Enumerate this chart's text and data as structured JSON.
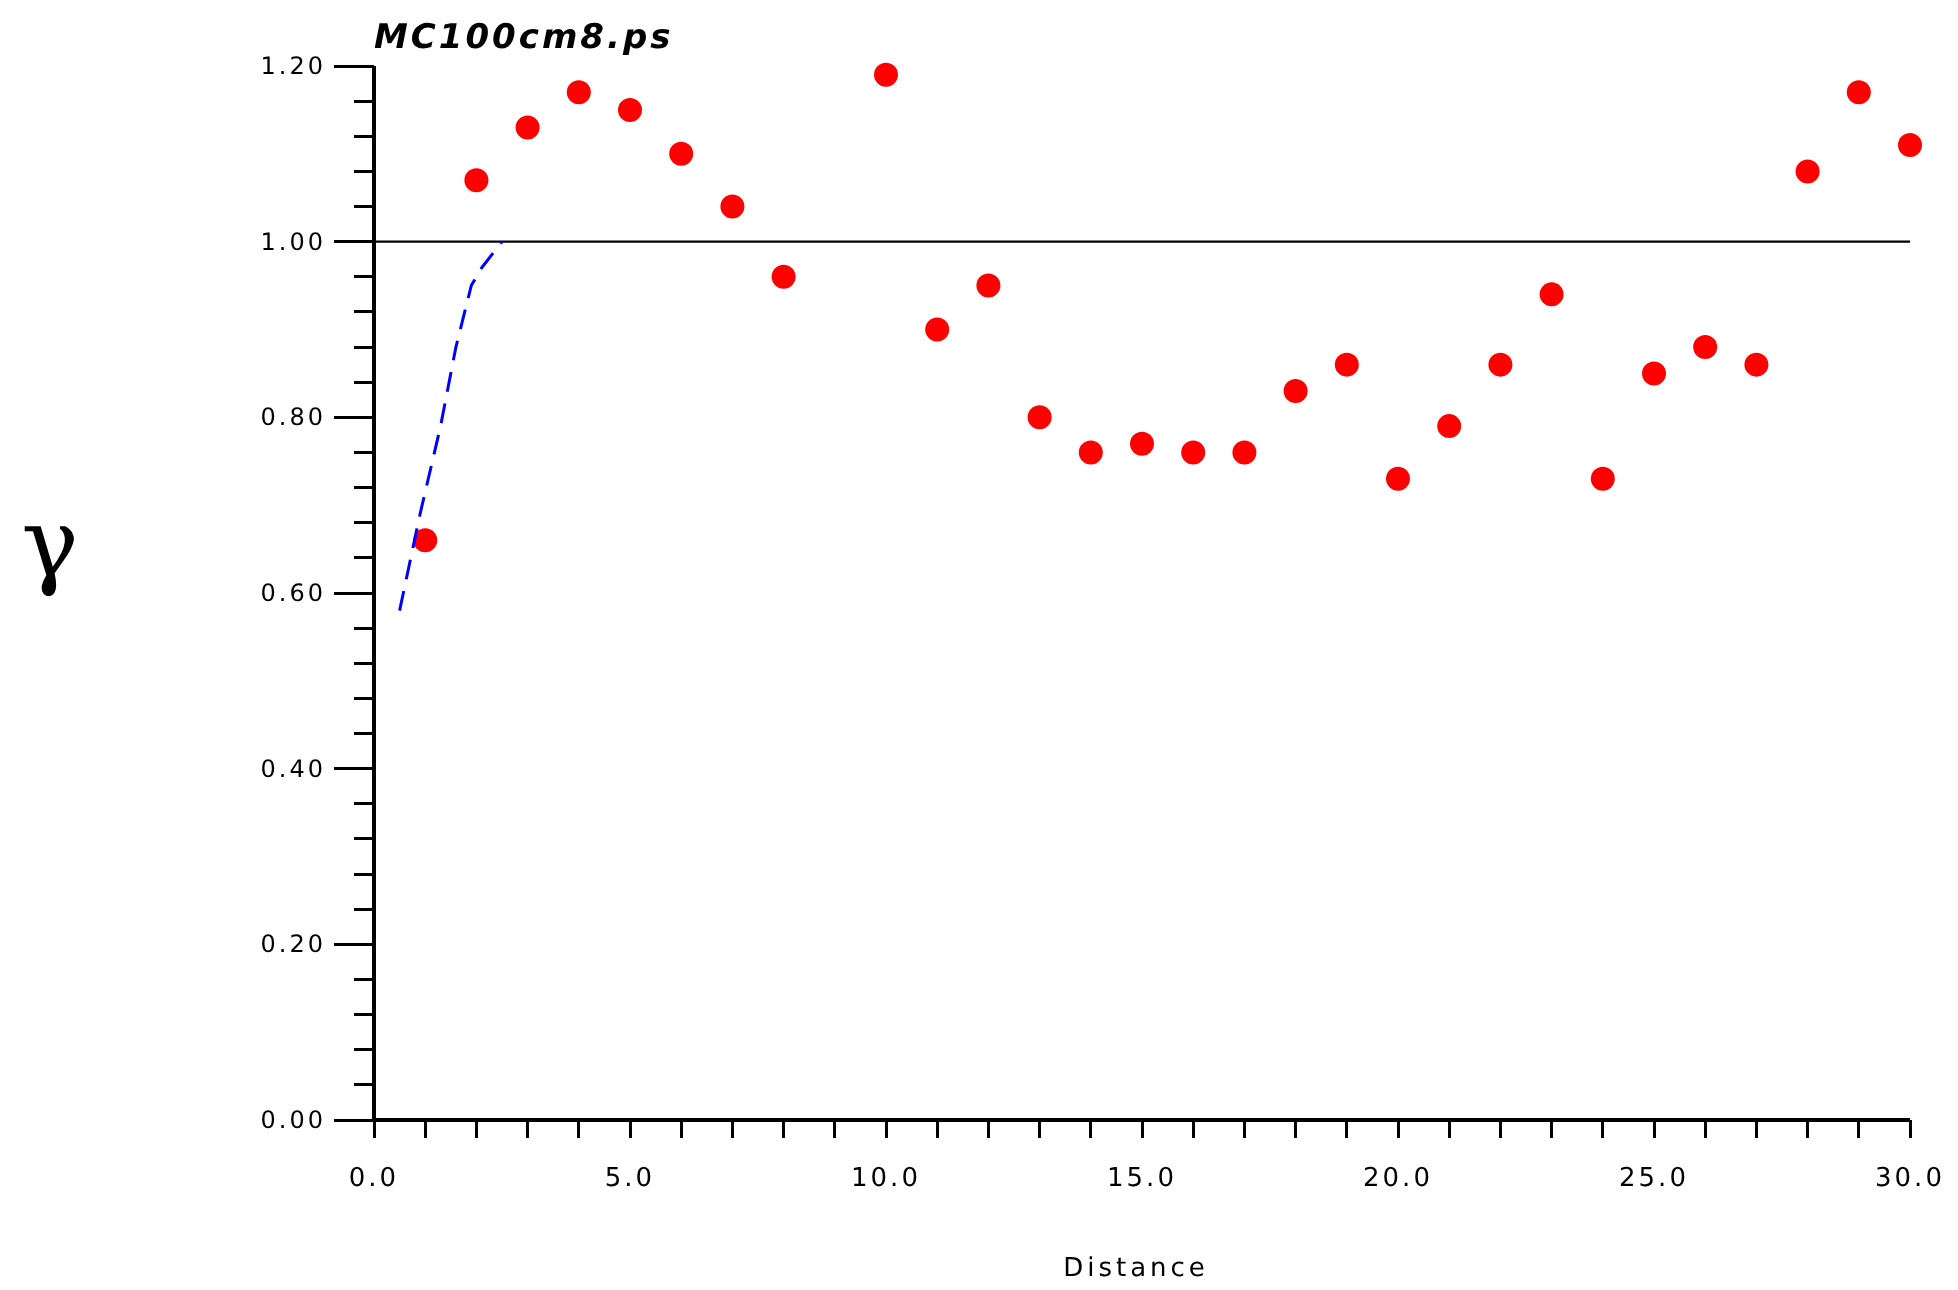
{
  "chart_data": {
    "type": "scatter",
    "title": "MC100cm8.ps",
    "xlabel": "Distance",
    "ylabel": "γ",
    "xlim": [
      0,
      30
    ],
    "ylim": [
      0,
      1.2
    ],
    "xticks": [
      {
        "value": 0,
        "label": "0.0"
      },
      {
        "value": 1,
        "label": null
      },
      {
        "value": 2,
        "label": null
      },
      {
        "value": 3,
        "label": null
      },
      {
        "value": 4,
        "label": null
      },
      {
        "value": 5,
        "label": "5.0"
      },
      {
        "value": 6,
        "label": null
      },
      {
        "value": 7,
        "label": null
      },
      {
        "value": 8,
        "label": null
      },
      {
        "value": 9,
        "label": null
      },
      {
        "value": 10,
        "label": "10.0"
      },
      {
        "value": 11,
        "label": null
      },
      {
        "value": 12,
        "label": null
      },
      {
        "value": 13,
        "label": null
      },
      {
        "value": 14,
        "label": null
      },
      {
        "value": 15,
        "label": "15.0"
      },
      {
        "value": 16,
        "label": null
      },
      {
        "value": 17,
        "label": null
      },
      {
        "value": 18,
        "label": null
      },
      {
        "value": 19,
        "label": null
      },
      {
        "value": 20,
        "label": "20.0"
      },
      {
        "value": 21,
        "label": null
      },
      {
        "value": 22,
        "label": null
      },
      {
        "value": 23,
        "label": null
      },
      {
        "value": 24,
        "label": null
      },
      {
        "value": 25,
        "label": "25.0"
      },
      {
        "value": 26,
        "label": null
      },
      {
        "value": 27,
        "label": null
      },
      {
        "value": 28,
        "label": null
      },
      {
        "value": 29,
        "label": null
      },
      {
        "value": 30,
        "label": "30.0"
      }
    ],
    "yticks": [
      {
        "value": 0,
        "label": "0.00"
      },
      {
        "value": 0.04,
        "label": null
      },
      {
        "value": 0.08,
        "label": null
      },
      {
        "value": 0.12,
        "label": null
      },
      {
        "value": 0.16,
        "label": null
      },
      {
        "value": 0.2,
        "label": "0.20"
      },
      {
        "value": 0.24,
        "label": null
      },
      {
        "value": 0.28,
        "label": null
      },
      {
        "value": 0.32,
        "label": null
      },
      {
        "value": 0.36,
        "label": null
      },
      {
        "value": 0.4,
        "label": "0.40"
      },
      {
        "value": 0.44,
        "label": null
      },
      {
        "value": 0.48,
        "label": null
      },
      {
        "value": 0.52,
        "label": null
      },
      {
        "value": 0.56,
        "label": null
      },
      {
        "value": 0.6,
        "label": "0.60"
      },
      {
        "value": 0.64,
        "label": null
      },
      {
        "value": 0.68,
        "label": null
      },
      {
        "value": 0.72,
        "label": null
      },
      {
        "value": 0.76,
        "label": null
      },
      {
        "value": 0.8,
        "label": "0.80"
      },
      {
        "value": 0.84,
        "label": null
      },
      {
        "value": 0.88,
        "label": null
      },
      {
        "value": 0.92,
        "label": null
      },
      {
        "value": 0.96,
        "label": null
      },
      {
        "value": 1,
        "label": "1.00"
      },
      {
        "value": 1.04,
        "label": null
      },
      {
        "value": 1.08,
        "label": null
      },
      {
        "value": 1.12,
        "label": null
      },
      {
        "value": 1.16,
        "label": null
      },
      {
        "value": 1.2,
        "label": "1.20"
      }
    ],
    "grid": false,
    "ref_lines": [
      {
        "axis": "y",
        "value": 1,
        "color": "#000000",
        "line_style": "solid"
      }
    ],
    "series": [
      {
        "color": "#ff0000",
        "marker": "circle",
        "x": [
          1,
          2,
          3,
          4,
          5,
          6,
          7,
          8,
          10,
          11,
          12,
          13,
          14,
          15,
          16,
          17,
          18,
          19,
          20,
          21,
          22,
          23,
          24,
          25,
          26,
          27,
          28,
          29,
          30
        ],
        "values": [
          0.66,
          1.07,
          1.13,
          1.17,
          1.15,
          1.1,
          1.04,
          0.96,
          1.19,
          0.9,
          0.95,
          0.8,
          0.76,
          0.77,
          0.76,
          0.76,
          0.83,
          0.86,
          0.73,
          0.79,
          0.86,
          0.94,
          0.73,
          0.85,
          0.88,
          0.86,
          1.08,
          1.17,
          1.11
        ]
      },
      {
        "type": "line",
        "color": "#0000ff",
        "line_style": "dashed",
        "marker": "none",
        "x": [
          0.5,
          0.9,
          1.3,
          1.6,
          1.9,
          2.1,
          2.5
        ],
        "values": [
          0.58,
          0.69,
          0.79,
          0.88,
          0.95,
          0.97,
          1.0
        ]
      }
    ]
  }
}
